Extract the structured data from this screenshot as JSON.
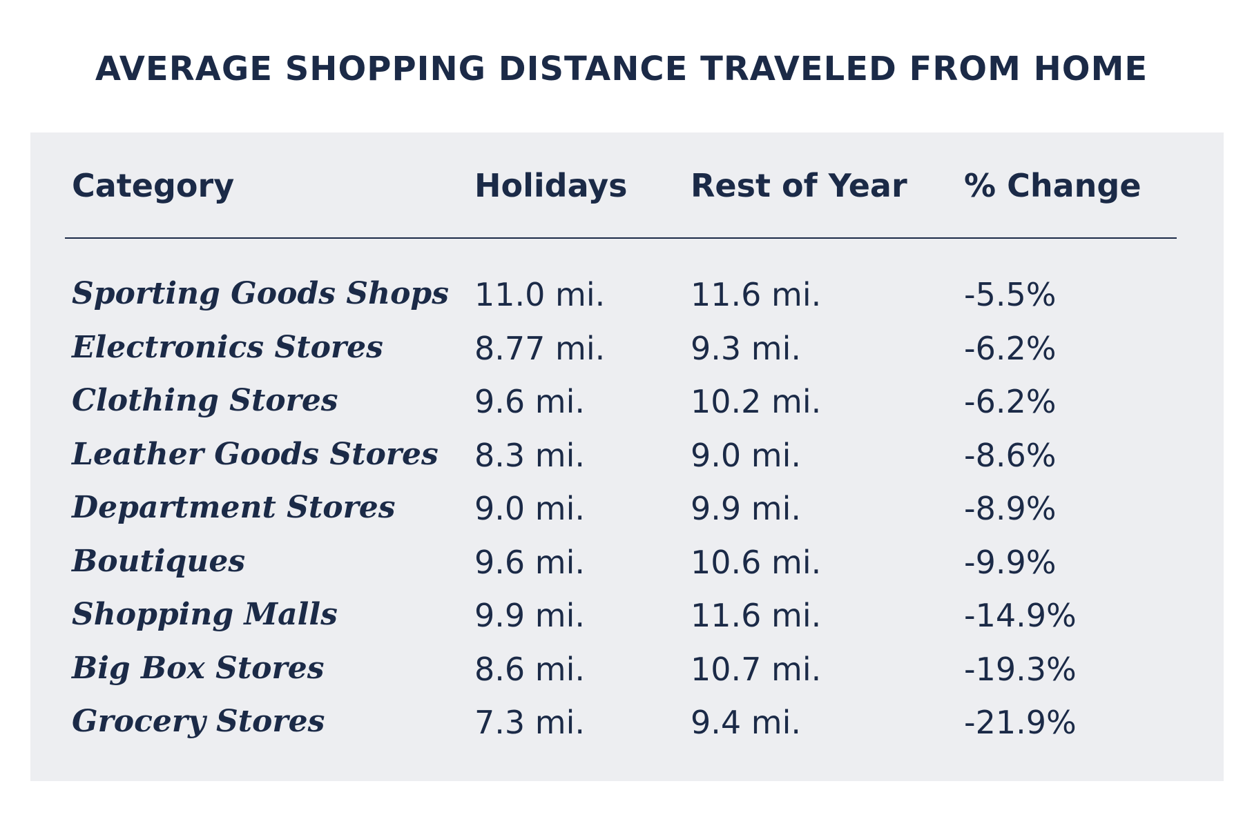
{
  "chart_data": {
    "type": "table",
    "title": "AVERAGE SHOPPING DISTANCE TRAVELED FROM HOME",
    "columns": [
      "Category",
      "Holidays",
      "Rest of Year",
      "% Change"
    ],
    "rows": [
      [
        "Sporting Goods Shops",
        "11.0 mi.",
        "11.6 mi.",
        "-5.5%"
      ],
      [
        "Electronics Stores",
        "8.77 mi.",
        "9.3 mi.",
        "-6.2%"
      ],
      [
        "Clothing Stores",
        "9.6 mi.",
        "10.2 mi.",
        "-6.2%"
      ],
      [
        "Leather Goods Stores",
        "8.3 mi.",
        "9.0 mi.",
        "-8.6%"
      ],
      [
        "Department Stores",
        "9.0 mi.",
        "9.9 mi.",
        "-8.9%"
      ],
      [
        "Boutiques",
        "9.6 mi.",
        "10.6 mi.",
        "-9.9%"
      ],
      [
        "Shopping Malls",
        "9.9 mi.",
        "11.6 mi.",
        "-14.9%"
      ],
      [
        "Big Box Stores",
        "8.6 mi.",
        "10.7 mi.",
        "-19.3%"
      ],
      [
        "Grocery Stores",
        "7.3 mi.",
        "9.4 mi.",
        "-21.9%"
      ]
    ]
  },
  "colors": {
    "text": "#1b2a47",
    "panel_background": "#edeef1",
    "page_background": "#ffffff"
  }
}
